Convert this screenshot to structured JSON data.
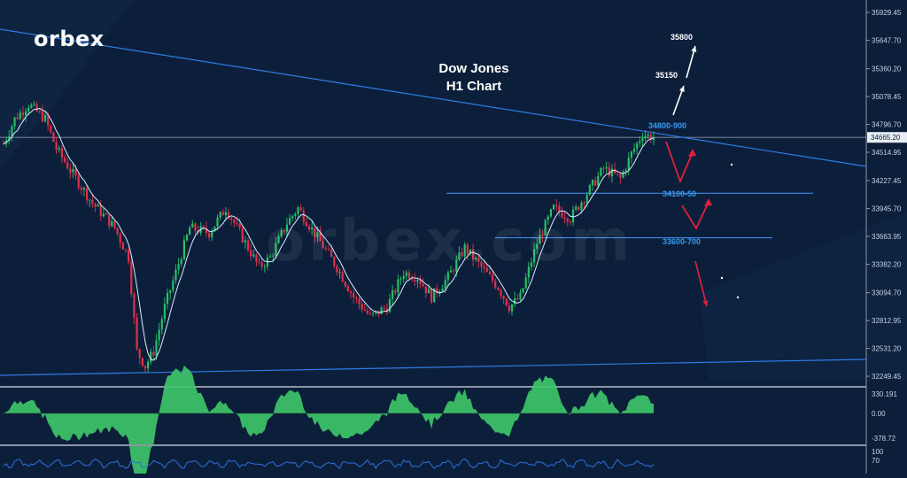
{
  "brand": {
    "logo_text": "orbex",
    "watermark_text": "orbex.com"
  },
  "chart_title": {
    "line1": "Dow Jones",
    "line2": "H1 Chart"
  },
  "colors": {
    "background": "#0c1f3a",
    "trendline": "#2f7be5",
    "level_line": "#3d86e8",
    "bull_candle": "#27c066",
    "bear_candle": "#e0304a",
    "ma_line": "#d9ecff",
    "scenario_up_arrow": "#ffffff",
    "scenario_down_arrow": "#e0203a",
    "level_label": "#3a9bf0",
    "histogram": "#3ec86a",
    "rsi_line": "#2f6fe0",
    "axis_text": "#c8d2e0",
    "separator": "#8c96a5"
  },
  "chart_data": {
    "type": "candlestick",
    "title": "Dow Jones H1 Chart",
    "ylim": [
      32100,
      36080
    ],
    "price_axis_ticks": [
      "35929.45",
      "35647.70",
      "35360.20",
      "35078.45",
      "34796.70",
      "34514.95",
      "34227.45",
      "33945.70",
      "33663.95",
      "33382.20",
      "33094.70",
      "32812.95",
      "32531.20",
      "32249.45"
    ],
    "current_price": "34665.20",
    "levels": [
      {
        "label": "34800-900",
        "price": 34800
      },
      {
        "label": "34100-50",
        "price": 34100
      },
      {
        "label": "33600-700",
        "price": 33650
      }
    ],
    "upside_targets": [
      {
        "label": "35150",
        "price": 35150
      },
      {
        "label": "35800",
        "price": 35800
      }
    ],
    "scenario": "rejection at 34800-900 descending trendline, pullbacks toward 34100-50 and 33600-700",
    "price_path_approx": [
      {
        "bar": 0,
        "close": 34600
      },
      {
        "bar": 4,
        "close": 34850
      },
      {
        "bar": 9,
        "close": 35000
      },
      {
        "bar": 15,
        "close": 34850
      },
      {
        "bar": 19,
        "close": 34550
      },
      {
        "bar": 26,
        "close": 34250
      },
      {
        "bar": 32,
        "close": 34000
      },
      {
        "bar": 40,
        "close": 33750
      },
      {
        "bar": 45,
        "close": 33450
      },
      {
        "bar": 48,
        "close": 32500
      },
      {
        "bar": 51,
        "close": 32350
      },
      {
        "bar": 54,
        "close": 32500
      },
      {
        "bar": 58,
        "close": 32950
      },
      {
        "bar": 62,
        "close": 33300
      },
      {
        "bar": 67,
        "close": 33750
      },
      {
        "bar": 74,
        "close": 33700
      },
      {
        "bar": 80,
        "close": 33950
      },
      {
        "bar": 86,
        "close": 33650
      },
      {
        "bar": 92,
        "close": 33350
      },
      {
        "bar": 96,
        "close": 33450
      },
      {
        "bar": 102,
        "close": 33800
      },
      {
        "bar": 106,
        "close": 33950
      },
      {
        "bar": 113,
        "close": 33650
      },
      {
        "bar": 120,
        "close": 33350
      },
      {
        "bar": 126,
        "close": 33050
      },
      {
        "bar": 132,
        "close": 32850
      },
      {
        "bar": 138,
        "close": 32950
      },
      {
        "bar": 144,
        "close": 33300
      },
      {
        "bar": 149,
        "close": 33250
      },
      {
        "bar": 154,
        "close": 33050
      },
      {
        "bar": 160,
        "close": 33250
      },
      {
        "bar": 166,
        "close": 33550
      },
      {
        "bar": 172,
        "close": 33350
      },
      {
        "bar": 178,
        "close": 33150
      },
      {
        "bar": 182,
        "close": 32950
      },
      {
        "bar": 186,
        "close": 33050
      },
      {
        "bar": 192,
        "close": 33600
      },
      {
        "bar": 198,
        "close": 33950
      },
      {
        "bar": 204,
        "close": 33850
      },
      {
        "bar": 210,
        "close": 34100
      },
      {
        "bar": 216,
        "close": 34350
      },
      {
        "bar": 222,
        "close": 34250
      },
      {
        "bar": 226,
        "close": 34500
      },
      {
        "bar": 230,
        "close": 34700
      },
      {
        "bar": 234,
        "close": 34665
      }
    ]
  },
  "oscillator": {
    "ticks": [
      "330.191",
      "0.00",
      "-378.72"
    ]
  },
  "rsi": {
    "ticks": [
      "100",
      "70"
    ]
  }
}
